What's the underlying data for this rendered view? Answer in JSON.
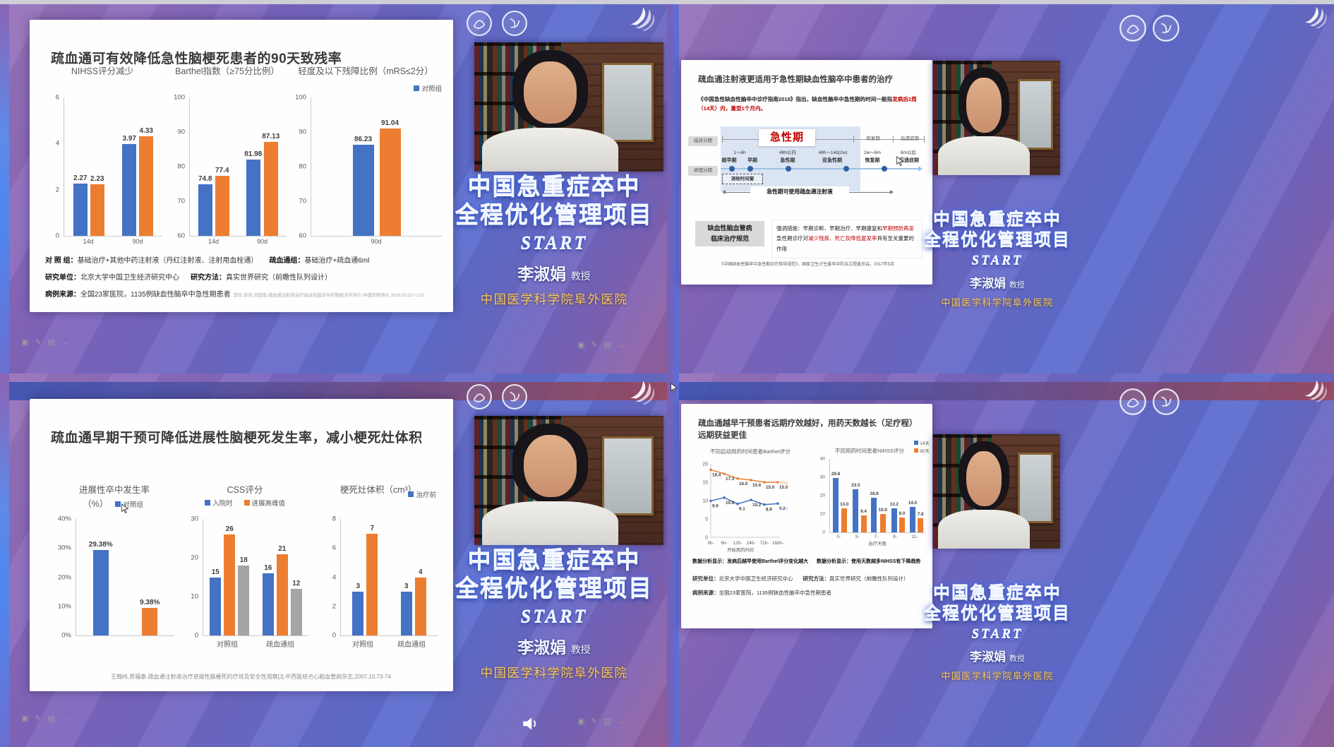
{
  "panel": {
    "line1": "中国急重症卒中",
    "line2": "全程优化管理项目",
    "start": "START",
    "name": "李淑娟",
    "name_suffix": "教授",
    "hospital": "中国医学科学院阜外医院"
  },
  "toolbar": {
    "icons": [
      {
        "name": "window-icon",
        "glyph": "▣"
      },
      {
        "name": "pencil-icon",
        "glyph": "✎"
      },
      {
        "name": "notes-icon",
        "glyph": "▤"
      },
      {
        "name": "forward-icon",
        "glyph": "→"
      }
    ]
  },
  "slides": {
    "tl": {
      "title": "疏血通可有效降低急性脑梗死患者的90天致残率",
      "notes": {
        "group_label": "对 照 组：",
        "group_text": "基础治疗+其他中药注射液（丹红注射液、注射用血栓通）",
        "sxt_label": "疏血通组：",
        "sxt_text": "基础治疗+疏血通6ml",
        "org_label": "研究单位：",
        "org_text": "北京大学中国卫生经济研究中心",
        "method_label": "研究方法：",
        "method_text": "真实世界研究（前瞻性队列设计）",
        "source_label": "病例来源：",
        "source_text": "全国23家医院，1135例缺血性脑卒中急性期患者",
        "citation": "李欣,徐伟,刘国恩.疏血通注射液治疗缺血性脑卒中药物经济学评价.中国药物评价,2016,03:117-123."
      }
    },
    "tr": {
      "title": "疏血通注射液更适用于急性期缺血性脑卒中患者的治疗",
      "para_black": "《中国急性缺血性脑卒中诊疗指南2018》指出，缺血性脑卒中急性期的时间一般指",
      "para_red1": "发病后2周（14天）内，",
      "para_red2": "重型1个月内。",
      "timeline": {
        "clinical_label": "临床分期",
        "pathology_label": "病理分期",
        "acute": "急性期",
        "recovery": "恢复期",
        "sequela": "后遗症期",
        "t1": "1～6h",
        "s1a": "超早期",
        "s1b": "早期",
        "t2": "48h以内",
        "s2": "急性期",
        "t3": "48h～14d(2w)",
        "s3": "亚急性期",
        "t4": "2w～6m",
        "s4": "恢复期",
        "t5": "6m以后",
        "s5": "后遗症期",
        "thrombolysis_window": "溶栓时间窗",
        "usage": "急性期可使用疏血通注射液"
      },
      "standard_box1": "缺血性脑血管病",
      "standard_box2": "临床治疗规范",
      "point1_black": "强调措施：早期诊断、早期治疗、早期康复和",
      "point1_red": "早期预防再发",
      "point2_black1": "急性期诊疗对",
      "point2_red": "减少残疾、死亡及降低复发率",
      "point2_black2": "具有至关重要的作用",
      "citation": "《中国缺血性脑卒中急性期诊疗指导规范》，国家卫生计生委卒中防治工程委员会，2017年5月"
    },
    "bl": {
      "title": "疏血通早期干预可降低进展性脑梗死发生率，减小梗死灶体积",
      "citation": "王翰纬,贺福泰.疏血通注射液治疗进展性脑梗死的疗效及安全性观察[J].中西医结合心脑血管病杂志,2007,10:73-74."
    },
    "br": {
      "title1": "疏血通越早干预患者远期疗效越好，用药天数越长（足疗程）",
      "title2": "远期获益更佳",
      "finding1_label": "数据分析显示：",
      "finding1": "发病后越早使用Barthel评分变化越大",
      "finding2_label": "数据分析显示：",
      "finding2": "使用天数越多NIHSS有下降趋势",
      "org_label": "研究单位：",
      "org_text": "北京大学中国卫生经济研究中心",
      "method_label": "研究方法：",
      "method_text": "真实世界研究（前瞻性队列设计）",
      "source_label": "病例来源：",
      "source_text": "全国23家医院，1135例缺血性脑卒中急性期患者"
    }
  },
  "colors": {
    "chart_blue": "#4472c4",
    "chart_orange": "#ed7d31",
    "chart_gray": "#a5a5a5",
    "accent_red": "#c00000",
    "gold": "#f5c85e"
  },
  "chart_data": [
    {
      "id": "tl_nihss",
      "type": "bar",
      "title": "NIHSS评分减少",
      "ymin": 0,
      "ymax": 6,
      "yticks": [
        "6",
        "4",
        "2",
        "0"
      ],
      "groups": [
        {
          "cat": "14d",
          "bars": [
            {
              "value": 2.27,
              "label": "2.27",
              "color": "#4472c4"
            },
            {
              "value": 2.23,
              "label": "2.23",
              "color": "#ed7d31"
            }
          ]
        },
        {
          "cat": "90d",
          "bars": [
            {
              "value": 3.97,
              "label": "3.97",
              "color": "#4472c4"
            },
            {
              "value": 4.33,
              "label": "4.33",
              "color": "#ed7d31"
            }
          ]
        }
      ]
    },
    {
      "id": "tl_barthel",
      "type": "bar",
      "title": "Barthel指数（≥75分比例）",
      "ymin": 60,
      "ymax": 100,
      "yticks": [
        "100",
        "90",
        "80",
        "70",
        "60"
      ],
      "groups": [
        {
          "cat": "14d",
          "bars": [
            {
              "value": 74.8,
              "label": "74.8",
              "color": "#4472c4"
            },
            {
              "value": 77.4,
              "label": "77.4",
              "color": "#ed7d31"
            }
          ]
        },
        {
          "cat": "90d",
          "bars": [
            {
              "value": 81.98,
              "label": "81.98",
              "color": "#4472c4"
            },
            {
              "value": 87.13,
              "label": "87.13",
              "color": "#ed7d31"
            }
          ]
        }
      ]
    },
    {
      "id": "tl_mrs",
      "type": "bar",
      "title": "轻度及以下残障比例（mRS≤2分）",
      "legend": [
        {
          "label": "对照组",
          "color": "#4472c4"
        }
      ],
      "ymin": 60,
      "ymax": 100,
      "yticks": [
        "100",
        "90",
        "80",
        "70",
        "60"
      ],
      "groups": [
        {
          "cat": "90d",
          "bars": [
            {
              "value": 86.23,
              "label": "86.23",
              "color": "#4472c4"
            },
            {
              "value": 91.04,
              "label": "91.04",
              "color": "#ed7d31"
            }
          ]
        }
      ]
    },
    {
      "id": "bl_prog",
      "type": "bar",
      "title": "进展性卒中发生率",
      "subtitle": "（%）",
      "legend": [
        {
          "label": "对照组",
          "color": "#4472c4"
        }
      ],
      "ymin": 0,
      "ymax": 40,
      "yticks": [
        "40%",
        "30%",
        "20%",
        "10%",
        "0%"
      ],
      "groups": [
        {
          "cat": "",
          "bars": [
            {
              "value": 29.38,
              "label": "29.38%",
              "color": "#4472c4"
            }
          ]
        },
        {
          "cat": "",
          "bars": [
            {
              "value": 9.38,
              "label": "9.38%",
              "color": "#ed7d31"
            }
          ]
        }
      ]
    },
    {
      "id": "bl_css",
      "type": "bar",
      "title": "CSS评分",
      "legend": [
        {
          "label": "入院时",
          "color": "#4472c4"
        },
        {
          "label": "进展高峰值",
          "color": "#ed7d31"
        }
      ],
      "ymin": 0,
      "ymax": 30,
      "yticks": [
        "30",
        "20",
        "10",
        "0"
      ],
      "groups": [
        {
          "cat": "对照组",
          "bars": [
            {
              "value": 15,
              "label": "15",
              "color": "#4472c4"
            },
            {
              "value": 26,
              "label": "26",
              "color": "#ed7d31"
            },
            {
              "value": 18,
              "label": "18",
              "color": "#a5a5a5"
            }
          ]
        },
        {
          "cat": "疏血通组",
          "bars": [
            {
              "value": 16,
              "label": "16",
              "color": "#4472c4"
            },
            {
              "value": 21,
              "label": "21",
              "color": "#ed7d31"
            },
            {
              "value": 12,
              "label": "12",
              "color": "#a5a5a5"
            }
          ]
        }
      ]
    },
    {
      "id": "bl_vol",
      "type": "bar",
      "title": "梗死灶体积（cm³）",
      "legend": [
        {
          "label": "治疗前",
          "color": "#4472c4"
        }
      ],
      "ymin": 0,
      "ymax": 8,
      "yticks": [
        "8",
        "6",
        "4",
        "2",
        "0"
      ],
      "groups": [
        {
          "cat": "对照组",
          "bars": [
            {
              "value": 3,
              "label": "3",
              "color": "#4472c4"
            },
            {
              "value": 7,
              "label": "7",
              "color": "#ed7d31"
            }
          ]
        },
        {
          "cat": "疏血通组",
          "bars": [
            {
              "value": 3,
              "label": "3",
              "color": "#4472c4"
            },
            {
              "value": 4,
              "label": "4",
              "color": "#ed7d31"
            }
          ]
        }
      ]
    },
    {
      "id": "br_barthel",
      "type": "line",
      "title": "不同启动用药时间患者Barthel评分",
      "x": [
        "0h-",
        "6h-",
        "12h-",
        "24h-",
        "72h-",
        "168h-"
      ],
      "xlabel": "开始用药时间",
      "ymin": 0,
      "ymax": 20,
      "yticks": [
        "20",
        "15",
        "10",
        "5",
        "0"
      ],
      "series": [
        {
          "name": "90d",
          "color": "#ed7d31",
          "end_label_color": "#e8a97e",
          "values": [
            18.4,
            17.3,
            16.0,
            15.6,
            15.0,
            15.0
          ],
          "labels": [
            "18.4",
            "17.3",
            "16.0",
            "15.6",
            "15.0",
            "15.0"
          ]
        },
        {
          "name": "14d",
          "color": "#4472c4",
          "end_label_color": "#9db3dc",
          "values": [
            9.9,
            10.8,
            9.1,
            10.2,
            8.9,
            9.2
          ],
          "labels": [
            "9.9",
            "10.8",
            "9.1",
            "10.2",
            "8.9",
            "9.2"
          ]
        }
      ]
    },
    {
      "id": "br_nihss",
      "type": "bar",
      "title": "不同用药时间患者NIHSS评分",
      "xlabel": "治疗天数",
      "legend": [
        {
          "label": "14天",
          "color": "#4472c4"
        },
        {
          "label": "90天",
          "color": "#ed7d31"
        }
      ],
      "ymin": 0,
      "ymax": 40,
      "yticks": [
        "40",
        "30",
        "20",
        "10",
        "0"
      ],
      "groups": [
        {
          "cat": "0-",
          "bars": [
            {
              "value": 29.8,
              "label": "29.8",
              "color": "#4472c4"
            },
            {
              "value": 13.0,
              "label": "13.0",
              "color": "#ed7d31"
            }
          ]
        },
        {
          "cat": "5-",
          "bars": [
            {
              "value": 23.5,
              "label": "23.5",
              "color": "#4472c4"
            },
            {
              "value": 9.4,
              "label": "9.4",
              "color": "#ed7d31"
            }
          ]
        },
        {
          "cat": "7-",
          "bars": [
            {
              "value": 18.8,
              "label": "18.8",
              "color": "#4472c4"
            },
            {
              "value": 10.0,
              "label": "10.0",
              "color": "#ed7d31"
            }
          ]
        },
        {
          "cat": "9-",
          "bars": [
            {
              "value": 13.2,
              "label": "13.2",
              "color": "#4472c4"
            },
            {
              "value": 8.0,
              "label": "8.0",
              "color": "#ed7d31"
            }
          ]
        },
        {
          "cat": "11-",
          "bars": [
            {
              "value": 14.0,
              "label": "14.0",
              "color": "#4472c4"
            },
            {
              "value": 7.8,
              "label": "7.8",
              "color": "#ed7d31"
            }
          ]
        }
      ]
    }
  ]
}
